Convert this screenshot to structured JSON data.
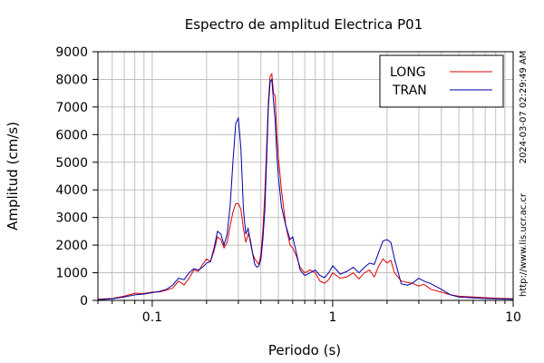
{
  "chart_data": {
    "type": "line",
    "title": "Espectro de amplitud Electrica P01",
    "xlabel": "Periodo (s)",
    "ylabel": "Amplitud (cm/s)",
    "x_scale": "log",
    "xlim": [
      0.05,
      10
    ],
    "ylim": [
      0,
      9000
    ],
    "x_ticks": [
      0.1,
      1,
      10
    ],
    "x_tick_labels": [
      "0.1",
      "1",
      "10"
    ],
    "y_ticks": [
      0,
      1000,
      2000,
      3000,
      4000,
      5000,
      6000,
      7000,
      8000,
      9000
    ],
    "y_tick_labels": [
      "0",
      "1000",
      "2000",
      "3000",
      "4000",
      "5000",
      "6000",
      "7000",
      "8000",
      "9000"
    ],
    "grid": true,
    "legend_position": "top-right",
    "side_labels": [
      "2024-03-07 02:29:49 AM",
      "http://www.lis.ucr.ac.cr"
    ],
    "colors": {
      "LONG": "#dd0000",
      "TRAN": "#0000aa",
      "grid": "#c0c0c0"
    },
    "series": [
      {
        "name": "LONG",
        "color": "#dd0000",
        "points": [
          [
            0.05,
            40
          ],
          [
            0.06,
            70
          ],
          [
            0.07,
            150
          ],
          [
            0.08,
            260
          ],
          [
            0.09,
            250
          ],
          [
            0.1,
            300
          ],
          [
            0.11,
            310
          ],
          [
            0.12,
            370
          ],
          [
            0.13,
            450
          ],
          [
            0.14,
            700
          ],
          [
            0.15,
            560
          ],
          [
            0.16,
            800
          ],
          [
            0.17,
            1100
          ],
          [
            0.18,
            1050
          ],
          [
            0.19,
            1300
          ],
          [
            0.2,
            1500
          ],
          [
            0.21,
            1400
          ],
          [
            0.22,
            1800
          ],
          [
            0.23,
            2300
          ],
          [
            0.24,
            2200
          ],
          [
            0.25,
            1900
          ],
          [
            0.26,
            2100
          ],
          [
            0.27,
            2700
          ],
          [
            0.28,
            3200
          ],
          [
            0.29,
            3500
          ],
          [
            0.3,
            3500
          ],
          [
            0.31,
            3300
          ],
          [
            0.32,
            2600
          ],
          [
            0.33,
            2100
          ],
          [
            0.34,
            2400
          ],
          [
            0.35,
            2200
          ],
          [
            0.36,
            1700
          ],
          [
            0.37,
            1500
          ],
          [
            0.38,
            1400
          ],
          [
            0.39,
            1300
          ],
          [
            0.4,
            1700
          ],
          [
            0.41,
            2500
          ],
          [
            0.42,
            3800
          ],
          [
            0.43,
            5500
          ],
          [
            0.44,
            7200
          ],
          [
            0.45,
            8100
          ],
          [
            0.46,
            8200
          ],
          [
            0.47,
            7500
          ],
          [
            0.48,
            7400
          ],
          [
            0.49,
            6000
          ],
          [
            0.5,
            5200
          ],
          [
            0.52,
            4000
          ],
          [
            0.55,
            2700
          ],
          [
            0.58,
            2000
          ],
          [
            0.6,
            1900
          ],
          [
            0.63,
            1600
          ],
          [
            0.66,
            1200
          ],
          [
            0.7,
            1000
          ],
          [
            0.75,
            1100
          ],
          [
            0.8,
            1000
          ],
          [
            0.85,
            700
          ],
          [
            0.9,
            620
          ],
          [
            0.95,
            750
          ],
          [
            1.0,
            1000
          ],
          [
            1.05,
            900
          ],
          [
            1.1,
            800
          ],
          [
            1.2,
            850
          ],
          [
            1.3,
            1000
          ],
          [
            1.4,
            780
          ],
          [
            1.5,
            1000
          ],
          [
            1.6,
            1100
          ],
          [
            1.7,
            850
          ],
          [
            1.8,
            1250
          ],
          [
            1.9,
            1500
          ],
          [
            2.0,
            1350
          ],
          [
            2.1,
            1450
          ],
          [
            2.2,
            1000
          ],
          [
            2.4,
            700
          ],
          [
            2.6,
            650
          ],
          [
            2.8,
            600
          ],
          [
            3.0,
            520
          ],
          [
            3.2,
            580
          ],
          [
            3.5,
            400
          ],
          [
            4.0,
            300
          ],
          [
            4.5,
            200
          ],
          [
            5.0,
            150
          ],
          [
            6.0,
            120
          ],
          [
            7.0,
            100
          ],
          [
            8.0,
            80
          ],
          [
            10.0,
            60
          ]
        ]
      },
      {
        "name": "TRAN",
        "color": "#0000aa",
        "points": [
          [
            0.05,
            20
          ],
          [
            0.06,
            60
          ],
          [
            0.07,
            120
          ],
          [
            0.08,
            200
          ],
          [
            0.09,
            230
          ],
          [
            0.1,
            280
          ],
          [
            0.11,
            330
          ],
          [
            0.12,
            400
          ],
          [
            0.13,
            560
          ],
          [
            0.14,
            800
          ],
          [
            0.15,
            750
          ],
          [
            0.16,
            1000
          ],
          [
            0.17,
            1150
          ],
          [
            0.18,
            1100
          ],
          [
            0.19,
            1200
          ],
          [
            0.2,
            1350
          ],
          [
            0.21,
            1400
          ],
          [
            0.22,
            1900
          ],
          [
            0.23,
            2500
          ],
          [
            0.24,
            2400
          ],
          [
            0.25,
            2000
          ],
          [
            0.26,
            2400
          ],
          [
            0.27,
            3400
          ],
          [
            0.28,
            5000
          ],
          [
            0.29,
            6400
          ],
          [
            0.3,
            6600
          ],
          [
            0.31,
            5500
          ],
          [
            0.32,
            3300
          ],
          [
            0.33,
            2400
          ],
          [
            0.34,
            2600
          ],
          [
            0.35,
            2100
          ],
          [
            0.36,
            1700
          ],
          [
            0.37,
            1300
          ],
          [
            0.38,
            1200
          ],
          [
            0.39,
            1250
          ],
          [
            0.4,
            1500
          ],
          [
            0.41,
            2200
          ],
          [
            0.42,
            3200
          ],
          [
            0.43,
            5000
          ],
          [
            0.44,
            7000
          ],
          [
            0.45,
            7900
          ],
          [
            0.46,
            8000
          ],
          [
            0.47,
            7200
          ],
          [
            0.48,
            6500
          ],
          [
            0.49,
            5300
          ],
          [
            0.5,
            4500
          ],
          [
            0.52,
            3400
          ],
          [
            0.55,
            2700
          ],
          [
            0.58,
            2200
          ],
          [
            0.6,
            2300
          ],
          [
            0.63,
            1700
          ],
          [
            0.66,
            1100
          ],
          [
            0.7,
            900
          ],
          [
            0.75,
            1000
          ],
          [
            0.8,
            1100
          ],
          [
            0.85,
            900
          ],
          [
            0.9,
            820
          ],
          [
            0.95,
            1000
          ],
          [
            1.0,
            1250
          ],
          [
            1.05,
            1100
          ],
          [
            1.1,
            950
          ],
          [
            1.2,
            1050
          ],
          [
            1.3,
            1200
          ],
          [
            1.4,
            1000
          ],
          [
            1.5,
            1200
          ],
          [
            1.6,
            1350
          ],
          [
            1.7,
            1300
          ],
          [
            1.8,
            1750
          ],
          [
            1.9,
            2150
          ],
          [
            2.0,
            2200
          ],
          [
            2.1,
            2100
          ],
          [
            2.2,
            1500
          ],
          [
            2.4,
            600
          ],
          [
            2.6,
            550
          ],
          [
            2.8,
            650
          ],
          [
            3.0,
            800
          ],
          [
            3.2,
            700
          ],
          [
            3.5,
            600
          ],
          [
            4.0,
            400
          ],
          [
            4.5,
            200
          ],
          [
            5.0,
            120
          ],
          [
            6.0,
            90
          ],
          [
            7.0,
            70
          ],
          [
            8.0,
            60
          ],
          [
            10.0,
            40
          ]
        ]
      }
    ]
  }
}
